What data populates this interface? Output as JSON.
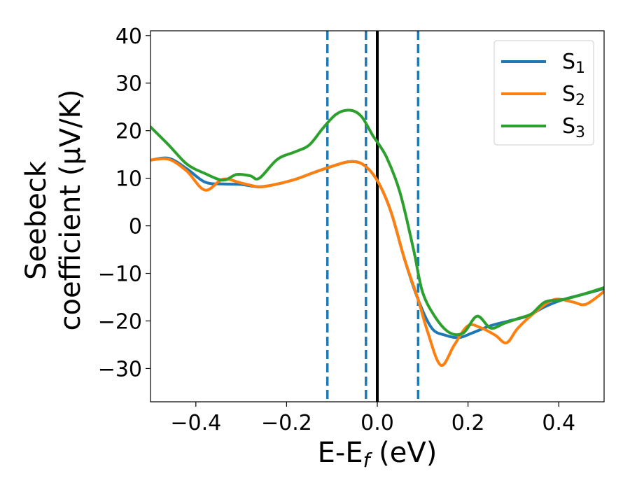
{
  "chart_data": {
    "type": "line",
    "xlabel": {
      "main": "E-E",
      "sub": "f",
      "unit": " (eV)"
    },
    "ylabel": {
      "line1": "Seebeck",
      "line2": "coefficient  (μV/K)"
    },
    "xlim": [
      -0.5,
      0.5
    ],
    "ylim": [
      -37,
      41
    ],
    "xticks": [
      -0.4,
      -0.2,
      0.0,
      0.2,
      0.4
    ],
    "xtick_labels": [
      "−0.4",
      "−0.2",
      "0.0",
      "0.2",
      "0.4"
    ],
    "yticks": [
      -30,
      -20,
      -10,
      0,
      10,
      20,
      30,
      40
    ],
    "ytick_labels": [
      "−30",
      "−20",
      "−10",
      "0",
      "10",
      "20",
      "30",
      "40"
    ],
    "grid": false,
    "legend_position": "top-right",
    "vlines": [
      {
        "x": -0.11,
        "style": "dashed",
        "color": "#1f77b4"
      },
      {
        "x": -0.025,
        "style": "dashed",
        "color": "#1f77b4"
      },
      {
        "x": 0.0,
        "style": "solid",
        "color": "#000000"
      },
      {
        "x": 0.09,
        "style": "dashed",
        "color": "#1f77b4"
      }
    ],
    "series": [
      {
        "name": "S",
        "sub": "1",
        "color": "#1f77b4",
        "points": [
          [
            -0.5,
            13.8
          ],
          [
            -0.46,
            14.2
          ],
          [
            -0.42,
            12.0
          ],
          [
            -0.38,
            9.2
          ],
          [
            -0.34,
            8.8
          ],
          [
            -0.3,
            8.7
          ],
          [
            -0.26,
            8.2
          ],
          [
            -0.22,
            8.8
          ],
          [
            -0.18,
            9.8
          ],
          [
            -0.14,
            11.2
          ],
          [
            -0.1,
            12.5
          ],
          [
            -0.06,
            13.5
          ],
          [
            -0.03,
            12.8
          ],
          [
            0.0,
            9.5
          ],
          [
            0.03,
            3.0
          ],
          [
            0.06,
            -7.0
          ],
          [
            0.09,
            -15.5
          ],
          [
            0.12,
            -21.5
          ],
          [
            0.15,
            -23.0
          ],
          [
            0.18,
            -23.5
          ],
          [
            0.21,
            -22.5
          ],
          [
            0.25,
            -21.0
          ],
          [
            0.29,
            -20.0
          ],
          [
            0.33,
            -19.0
          ],
          [
            0.37,
            -17.0
          ],
          [
            0.41,
            -15.5
          ],
          [
            0.45,
            -14.5
          ],
          [
            0.5,
            -13.2
          ]
        ]
      },
      {
        "name": "S",
        "sub": "2",
        "color": "#ff7f0e",
        "points": [
          [
            -0.5,
            13.8
          ],
          [
            -0.46,
            14.0
          ],
          [
            -0.42,
            11.5
          ],
          [
            -0.38,
            7.5
          ],
          [
            -0.34,
            9.8
          ],
          [
            -0.3,
            9.0
          ],
          [
            -0.26,
            8.2
          ],
          [
            -0.22,
            8.8
          ],
          [
            -0.18,
            9.8
          ],
          [
            -0.14,
            11.2
          ],
          [
            -0.1,
            12.5
          ],
          [
            -0.06,
            13.5
          ],
          [
            -0.03,
            12.8
          ],
          [
            0.0,
            9.5
          ],
          [
            0.03,
            3.0
          ],
          [
            0.06,
            -7.0
          ],
          [
            0.09,
            -15.5
          ],
          [
            0.11,
            -22.0
          ],
          [
            0.14,
            -29.3
          ],
          [
            0.17,
            -25.0
          ],
          [
            0.2,
            -21.0
          ],
          [
            0.23,
            -21.5
          ],
          [
            0.26,
            -23.0
          ],
          [
            0.285,
            -24.6
          ],
          [
            0.31,
            -21.5
          ],
          [
            0.35,
            -18.0
          ],
          [
            0.39,
            -15.5
          ],
          [
            0.43,
            -16.0
          ],
          [
            0.46,
            -16.5
          ],
          [
            0.5,
            -13.8
          ]
        ]
      },
      {
        "name": "S",
        "sub": "3",
        "color": "#2ca02c",
        "points": [
          [
            -0.5,
            20.8
          ],
          [
            -0.46,
            17.0
          ],
          [
            -0.42,
            13.0
          ],
          [
            -0.38,
            11.0
          ],
          [
            -0.34,
            9.6
          ],
          [
            -0.31,
            10.8
          ],
          [
            -0.28,
            10.5
          ],
          [
            -0.26,
            10.0
          ],
          [
            -0.22,
            14.0
          ],
          [
            -0.18,
            15.6
          ],
          [
            -0.15,
            17.0
          ],
          [
            -0.12,
            20.5
          ],
          [
            -0.09,
            23.5
          ],
          [
            -0.06,
            24.3
          ],
          [
            -0.035,
            23.0
          ],
          [
            -0.01,
            19.0
          ],
          [
            0.02,
            14.5
          ],
          [
            0.05,
            7.0
          ],
          [
            0.08,
            -5.0
          ],
          [
            0.1,
            -14.0
          ],
          [
            0.13,
            -19.5
          ],
          [
            0.16,
            -22.5
          ],
          [
            0.19,
            -22.5
          ],
          [
            0.22,
            -19.0
          ],
          [
            0.25,
            -21.5
          ],
          [
            0.28,
            -20.5
          ],
          [
            0.31,
            -19.5
          ],
          [
            0.34,
            -18.5
          ],
          [
            0.37,
            -16.0
          ],
          [
            0.41,
            -15.5
          ],
          [
            0.45,
            -14.5
          ],
          [
            0.5,
            -13.0
          ]
        ]
      }
    ]
  }
}
